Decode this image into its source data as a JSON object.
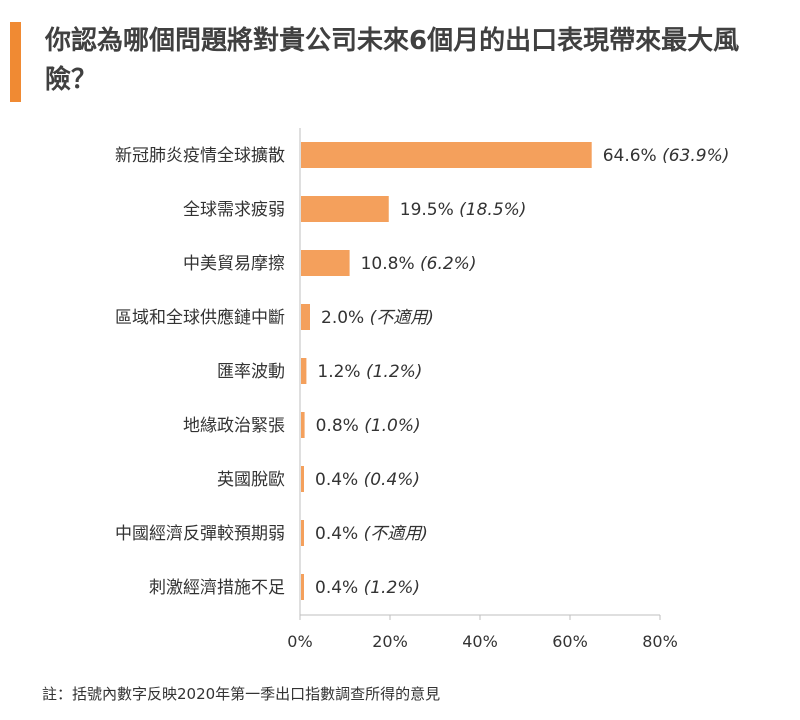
{
  "title": "你認為哪個問題將對貴公司未來6個月的出口表現帶來最大風險？",
  "note": "註：括號內數字反映2020年第一季出口指數調查所得的意見",
  "colors": {
    "accent": "#F08A33",
    "bar": "#F4A05C",
    "axis": "#BFBFBF",
    "text": "#333333"
  },
  "chart_data": {
    "type": "bar",
    "orientation": "horizontal",
    "categories": [
      "新冠肺炎疫情全球擴散",
      "全球需求疲弱",
      "中美貿易摩擦",
      "區域和全球供應鏈中斷",
      "匯率波動",
      "地緣政治緊張",
      "英國脫歐",
      "中國經濟反彈較預期弱",
      "刺激經濟措施不足"
    ],
    "values": [
      64.6,
      19.5,
      10.8,
      2.0,
      1.2,
      0.8,
      0.4,
      0.4,
      0.4
    ],
    "value_labels": [
      "64.6%",
      "19.5%",
      "10.8%",
      "2.0%",
      "1.2%",
      "0.8%",
      "0.4%",
      "0.4%",
      "0.4%"
    ],
    "previous_labels": [
      "(63.9%)",
      "(18.5%)",
      "(6.2%)",
      "(不適用)",
      "(1.2%)",
      "(1.0%)",
      "(0.4%)",
      "(不適用)",
      "(1.2%)"
    ],
    "xlim": [
      0,
      80
    ],
    "xticks": [
      "0%",
      "20%",
      "40%",
      "60%",
      "80%"
    ],
    "grid": false,
    "xlabel": "",
    "ylabel": ""
  }
}
